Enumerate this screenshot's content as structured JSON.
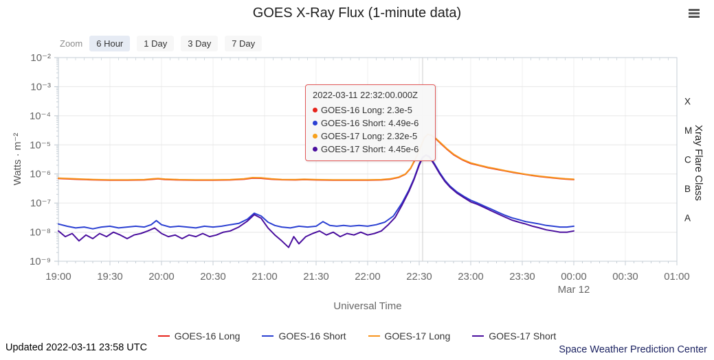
{
  "header": {
    "title": "GOES X-Ray Flux (1-minute data)"
  },
  "toolbar": {
    "zoom_label": "Zoom",
    "buttons": [
      {
        "label": "6 Hour",
        "selected": true
      },
      {
        "label": "1 Day",
        "selected": false
      },
      {
        "label": "3 Day",
        "selected": false
      },
      {
        "label": "7 Day",
        "selected": false
      }
    ]
  },
  "tooltip": {
    "timestamp": "2022-03-11 22:32:00.000Z",
    "border_color": "#e25757",
    "rows": [
      {
        "label": "GOES-16 Long",
        "value": "2.3e-5",
        "color": "#e6231b"
      },
      {
        "label": "GOES-16 Short",
        "value": "4.49e-6",
        "color": "#2a3fd2"
      },
      {
        "label": "GOES-17 Long",
        "value": "2.32e-5",
        "color": "#f7a01b"
      },
      {
        "label": "GOES-17 Short",
        "value": "4.45e-6",
        "color": "#4a0f9e"
      }
    ]
  },
  "legend": [
    {
      "label": "GOES-16 Long",
      "color": "#e6231b"
    },
    {
      "label": "GOES-16 Short",
      "color": "#2a3fd2"
    },
    {
      "label": "GOES-17 Long",
      "color": "#f7941d"
    },
    {
      "label": "GOES-17 Short",
      "color": "#4a0f9e"
    }
  ],
  "footer": {
    "updated": "Updated 2022-03-11 23:58 UTC",
    "credit": "Space Weather Prediction Center"
  },
  "chart_data": {
    "type": "line",
    "title": "GOES X-Ray Flux (1-minute data)",
    "xlabel": "Universal Time",
    "ylabel": "Watts · m⁻²",
    "y2label": "Xray Flare Class",
    "x_start_time": "19:00 UTC 2022-03-11",
    "x_minutes_range": [
      0,
      360
    ],
    "y_log_range": [
      -9,
      -2
    ],
    "grid": true,
    "legend_position": "bottom",
    "crosshair_minutes": 212,
    "x_ticks": [
      {
        "t": 0,
        "label": "19:00"
      },
      {
        "t": 30,
        "label": "19:30"
      },
      {
        "t": 60,
        "label": "20:00"
      },
      {
        "t": 90,
        "label": "20:30"
      },
      {
        "t": 120,
        "label": "21:00"
      },
      {
        "t": 150,
        "label": "21:30"
      },
      {
        "t": 180,
        "label": "22:00"
      },
      {
        "t": 210,
        "label": "22:30"
      },
      {
        "t": 240,
        "label": "23:00"
      },
      {
        "t": 270,
        "label": "23:30"
      },
      {
        "t": 300,
        "label": "00:00",
        "sub": "Mar 12"
      },
      {
        "t": 330,
        "label": "00:30"
      },
      {
        "t": 360,
        "label": "01:00"
      }
    ],
    "y_ticks": [
      {
        "exp": -2,
        "label": "10⁻²"
      },
      {
        "exp": -3,
        "label": "10⁻³"
      },
      {
        "exp": -4,
        "label": "10⁻⁴"
      },
      {
        "exp": -5,
        "label": "10⁻⁵"
      },
      {
        "exp": -6,
        "label": "10⁻⁶"
      },
      {
        "exp": -7,
        "label": "10⁻⁷"
      },
      {
        "exp": -8,
        "label": "10⁻⁸"
      },
      {
        "exp": -9,
        "label": "10⁻⁹"
      }
    ],
    "flare_classes": [
      {
        "label": "X",
        "log_center": -3.5
      },
      {
        "label": "M",
        "log_center": -4.5
      },
      {
        "label": "C",
        "log_center": -5.5
      },
      {
        "label": "B",
        "log_center": -6.5
      },
      {
        "label": "A",
        "log_center": -7.5
      }
    ],
    "series": [
      {
        "name": "GOES-16 Long",
        "color": "#e6231b",
        "points": [
          [
            0,
            7e-07
          ],
          [
            10,
            6.6e-07
          ],
          [
            20,
            6.3e-07
          ],
          [
            30,
            6.15e-07
          ],
          [
            40,
            6.15e-07
          ],
          [
            50,
            6.25e-07
          ],
          [
            55,
            6.6e-07
          ],
          [
            58,
            6.8e-07
          ],
          [
            62,
            6.5e-07
          ],
          [
            70,
            6.25e-07
          ],
          [
            80,
            6.15e-07
          ],
          [
            90,
            6.15e-07
          ],
          [
            100,
            6.25e-07
          ],
          [
            108,
            6.6e-07
          ],
          [
            113,
            7.2e-07
          ],
          [
            118,
            7.1e-07
          ],
          [
            124,
            6.6e-07
          ],
          [
            130,
            6.35e-07
          ],
          [
            138,
            6.25e-07
          ],
          [
            143,
            6.4e-07
          ],
          [
            150,
            6.25e-07
          ],
          [
            160,
            6.15e-07
          ],
          [
            170,
            6.15e-07
          ],
          [
            180,
            6.15e-07
          ],
          [
            188,
            6.25e-07
          ],
          [
            193,
            6.6e-07
          ],
          [
            198,
            7.6e-07
          ],
          [
            202,
            9.8e-07
          ],
          [
            205,
            1.55e-06
          ],
          [
            208,
            3.4e-06
          ],
          [
            211,
            8.8e-06
          ],
          [
            213,
            1.75e-05
          ],
          [
            215,
            2.3e-05
          ],
          [
            217,
            2.15e-05
          ],
          [
            220,
            1.55e-05
          ],
          [
            223,
            1.05e-05
          ],
          [
            226,
            7.2e-06
          ],
          [
            230,
            4.6e-06
          ],
          [
            235,
            3.1e-06
          ],
          [
            240,
            2.3e-06
          ],
          [
            245,
            1.95e-06
          ],
          [
            250,
            1.65e-06
          ],
          [
            255,
            1.45e-06
          ],
          [
            260,
            1.27e-06
          ],
          [
            265,
            1.12e-06
          ],
          [
            270,
            1e-06
          ],
          [
            275,
            9e-07
          ],
          [
            280,
            8.2e-07
          ],
          [
            285,
            7.6e-07
          ],
          [
            290,
            7.1e-07
          ],
          [
            295,
            6.7e-07
          ],
          [
            300,
            6.4e-07
          ]
        ]
      },
      {
        "name": "GOES-16 Short",
        "color": "#2a3fd2",
        "points": [
          [
            0,
            1.9e-08
          ],
          [
            5,
            1.6e-08
          ],
          [
            10,
            1.4e-08
          ],
          [
            15,
            1.5e-08
          ],
          [
            20,
            1.3e-08
          ],
          [
            25,
            1.5e-08
          ],
          [
            30,
            1.6e-08
          ],
          [
            35,
            1.4e-08
          ],
          [
            40,
            1.5e-08
          ],
          [
            45,
            1.6e-08
          ],
          [
            50,
            1.5e-08
          ],
          [
            54,
            1.8e-08
          ],
          [
            57,
            2.5e-08
          ],
          [
            60,
            1.8e-08
          ],
          [
            65,
            1.5e-08
          ],
          [
            70,
            1.6e-08
          ],
          [
            75,
            1.5e-08
          ],
          [
            80,
            1.4e-08
          ],
          [
            85,
            1.6e-08
          ],
          [
            90,
            1.5e-08
          ],
          [
            95,
            1.6e-08
          ],
          [
            100,
            1.8e-08
          ],
          [
            105,
            2e-08
          ],
          [
            110,
            2.8e-08
          ],
          [
            114,
            4.5e-08
          ],
          [
            118,
            3.6e-08
          ],
          [
            122,
            2.2e-08
          ],
          [
            126,
            1.7e-08
          ],
          [
            130,
            1.5e-08
          ],
          [
            135,
            1.4e-08
          ],
          [
            140,
            1.6e-08
          ],
          [
            145,
            1.5e-08
          ],
          [
            150,
            1.6e-08
          ],
          [
            154,
            2.3e-08
          ],
          [
            158,
            1.7e-08
          ],
          [
            162,
            1.6e-08
          ],
          [
            166,
            1.7e-08
          ],
          [
            170,
            1.6e-08
          ],
          [
            175,
            1.7e-08
          ],
          [
            180,
            1.6e-08
          ],
          [
            185,
            1.8e-08
          ],
          [
            190,
            2.2e-08
          ],
          [
            195,
            3.6e-08
          ],
          [
            200,
            1e-07
          ],
          [
            204,
            2.8e-07
          ],
          [
            207,
            7e-07
          ],
          [
            210,
            2.2e-06
          ],
          [
            212,
            3.8e-06
          ],
          [
            214,
            4.49e-06
          ],
          [
            216,
            4e-06
          ],
          [
            219,
            2.2e-06
          ],
          [
            222,
            1.1e-06
          ],
          [
            225,
            6e-07
          ],
          [
            228,
            3.8e-07
          ],
          [
            232,
            2.4e-07
          ],
          [
            236,
            1.7e-07
          ],
          [
            240,
            1.25e-07
          ],
          [
            244,
            1e-07
          ],
          [
            248,
            7.8e-08
          ],
          [
            252,
            6.2e-08
          ],
          [
            256,
            4.8e-08
          ],
          [
            260,
            3.8e-08
          ],
          [
            264,
            3.1e-08
          ],
          [
            268,
            2.7e-08
          ],
          [
            272,
            2.3e-08
          ],
          [
            276,
            2.1e-08
          ],
          [
            280,
            1.9e-08
          ],
          [
            284,
            1.7e-08
          ],
          [
            288,
            1.6e-08
          ],
          [
            292,
            1.5e-08
          ],
          [
            296,
            1.5e-08
          ],
          [
            300,
            1.6e-08
          ]
        ]
      },
      {
        "name": "GOES-17 Long",
        "color": "#f7941d",
        "points": [
          [
            0,
            7.2e-07
          ],
          [
            10,
            6.8e-07
          ],
          [
            20,
            6.5e-07
          ],
          [
            30,
            6.3e-07
          ],
          [
            40,
            6.3e-07
          ],
          [
            50,
            6.4e-07
          ],
          [
            55,
            6.8e-07
          ],
          [
            58,
            7e-07
          ],
          [
            62,
            6.7e-07
          ],
          [
            70,
            6.4e-07
          ],
          [
            80,
            6.3e-07
          ],
          [
            90,
            6.3e-07
          ],
          [
            100,
            6.4e-07
          ],
          [
            108,
            6.8e-07
          ],
          [
            113,
            7.5e-07
          ],
          [
            118,
            7.4e-07
          ],
          [
            124,
            6.8e-07
          ],
          [
            130,
            6.5e-07
          ],
          [
            138,
            6.4e-07
          ],
          [
            143,
            6.6e-07
          ],
          [
            150,
            6.4e-07
          ],
          [
            160,
            6.3e-07
          ],
          [
            170,
            6.3e-07
          ],
          [
            180,
            6.3e-07
          ],
          [
            188,
            6.4e-07
          ],
          [
            193,
            6.8e-07
          ],
          [
            198,
            7.8e-07
          ],
          [
            202,
            1e-06
          ],
          [
            205,
            1.6e-06
          ],
          [
            208,
            3.5e-06
          ],
          [
            211,
            9e-06
          ],
          [
            213,
            1.8e-05
          ],
          [
            215,
            2.32e-05
          ],
          [
            217,
            2.2e-05
          ],
          [
            220,
            1.6e-05
          ],
          [
            223,
            1.1e-05
          ],
          [
            226,
            7.5e-06
          ],
          [
            230,
            4.8e-06
          ],
          [
            235,
            3.2e-06
          ],
          [
            240,
            2.4e-06
          ],
          [
            245,
            2e-06
          ],
          [
            250,
            1.7e-06
          ],
          [
            255,
            1.5e-06
          ],
          [
            260,
            1.3e-06
          ],
          [
            265,
            1.15e-06
          ],
          [
            270,
            1.02e-06
          ],
          [
            275,
            9.2e-07
          ],
          [
            280,
            8.4e-07
          ],
          [
            285,
            7.8e-07
          ],
          [
            290,
            7.3e-07
          ],
          [
            295,
            6.9e-07
          ],
          [
            300,
            6.6e-07
          ]
        ]
      },
      {
        "name": "GOES-17 Short",
        "color": "#4a0f9e",
        "points": [
          [
            0,
            1.1e-08
          ],
          [
            4,
            7e-09
          ],
          [
            8,
            9e-09
          ],
          [
            12,
            5e-09
          ],
          [
            16,
            8e-09
          ],
          [
            20,
            6e-09
          ],
          [
            24,
            9e-09
          ],
          [
            28,
            7e-09
          ],
          [
            32,
            1e-08
          ],
          [
            36,
            8e-09
          ],
          [
            40,
            6e-09
          ],
          [
            44,
            8e-09
          ],
          [
            48,
            9e-09
          ],
          [
            52,
            1.1e-08
          ],
          [
            56,
            1.4e-08
          ],
          [
            60,
            9e-09
          ],
          [
            64,
            7e-09
          ],
          [
            68,
            8e-09
          ],
          [
            72,
            6e-09
          ],
          [
            76,
            8e-09
          ],
          [
            80,
            7e-09
          ],
          [
            84,
            9e-09
          ],
          [
            88,
            7e-09
          ],
          [
            92,
            8e-09
          ],
          [
            96,
            1e-08
          ],
          [
            100,
            1.1e-08
          ],
          [
            105,
            1.5e-08
          ],
          [
            110,
            2.4e-08
          ],
          [
            114,
            4e-08
          ],
          [
            118,
            3e-08
          ],
          [
            122,
            1.4e-08
          ],
          [
            126,
            8e-09
          ],
          [
            130,
            5e-09
          ],
          [
            134,
            3e-09
          ],
          [
            137,
            7e-09
          ],
          [
            140,
            4e-09
          ],
          [
            144,
            7e-09
          ],
          [
            148,
            9e-09
          ],
          [
            152,
            1.1e-08
          ],
          [
            156,
            8e-09
          ],
          [
            160,
            1e-08
          ],
          [
            164,
            7e-09
          ],
          [
            168,
            9e-09
          ],
          [
            172,
            8e-09
          ],
          [
            176,
            1e-08
          ],
          [
            180,
            8e-09
          ],
          [
            184,
            9e-09
          ],
          [
            188,
            1.1e-08
          ],
          [
            192,
            1.8e-08
          ],
          [
            196,
            3.2e-08
          ],
          [
            200,
            8.5e-08
          ],
          [
            204,
            2.5e-07
          ],
          [
            207,
            6.5e-07
          ],
          [
            210,
            2e-06
          ],
          [
            212,
            3.6e-06
          ],
          [
            214,
            4.45e-06
          ],
          [
            216,
            3.8e-06
          ],
          [
            219,
            2e-06
          ],
          [
            222,
            1e-06
          ],
          [
            225,
            5.5e-07
          ],
          [
            228,
            3.5e-07
          ],
          [
            232,
            2.2e-07
          ],
          [
            236,
            1.55e-07
          ],
          [
            240,
            1.1e-07
          ],
          [
            244,
            9e-08
          ],
          [
            248,
            7e-08
          ],
          [
            252,
            5.4e-08
          ],
          [
            256,
            4.2e-08
          ],
          [
            260,
            3.3e-08
          ],
          [
            264,
            2.6e-08
          ],
          [
            268,
            2.2e-08
          ],
          [
            272,
            1.9e-08
          ],
          [
            276,
            1.6e-08
          ],
          [
            280,
            1.4e-08
          ],
          [
            284,
            1.2e-08
          ],
          [
            288,
            1.1e-08
          ],
          [
            292,
            1e-08
          ],
          [
            296,
            1e-08
          ],
          [
            300,
            1.1e-08
          ]
        ]
      }
    ]
  }
}
